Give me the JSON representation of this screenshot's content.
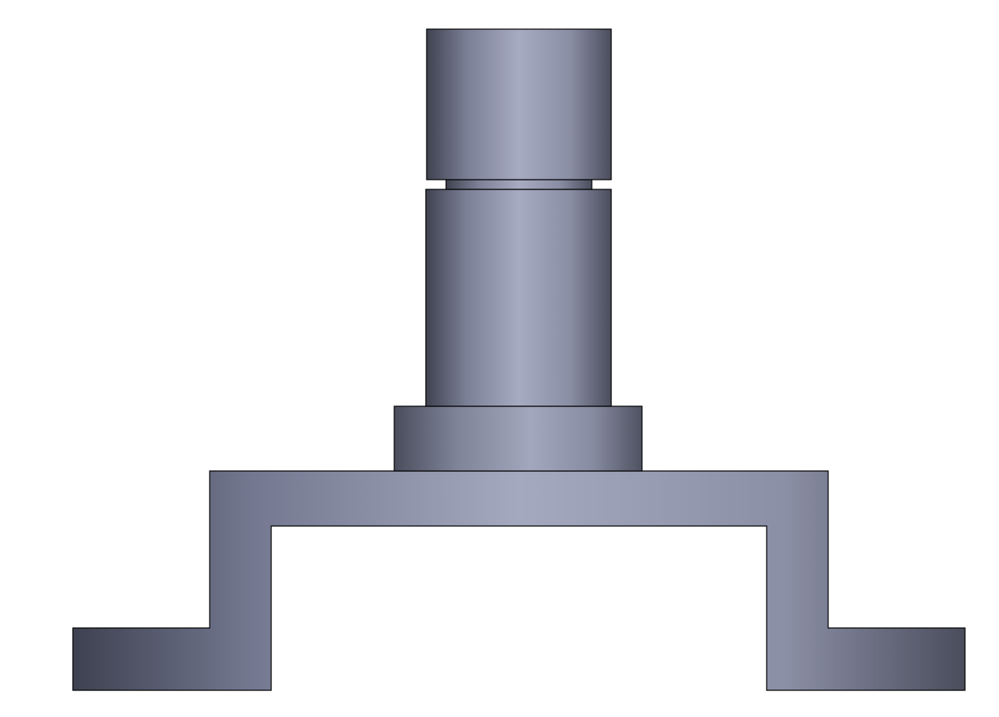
{
  "drawing": {
    "view": "front",
    "parts": [
      "top-cap-cylinder",
      "neck-groove",
      "main-shaft-cylinder",
      "collar-ring",
      "hat-bracket-flange"
    ],
    "colors": {
      "background": "#ffffff",
      "outline": "#000000",
      "shade_dark": "#3f4250",
      "shade_mid": "#7b8096",
      "shade_light": "#a7abc2"
    }
  }
}
